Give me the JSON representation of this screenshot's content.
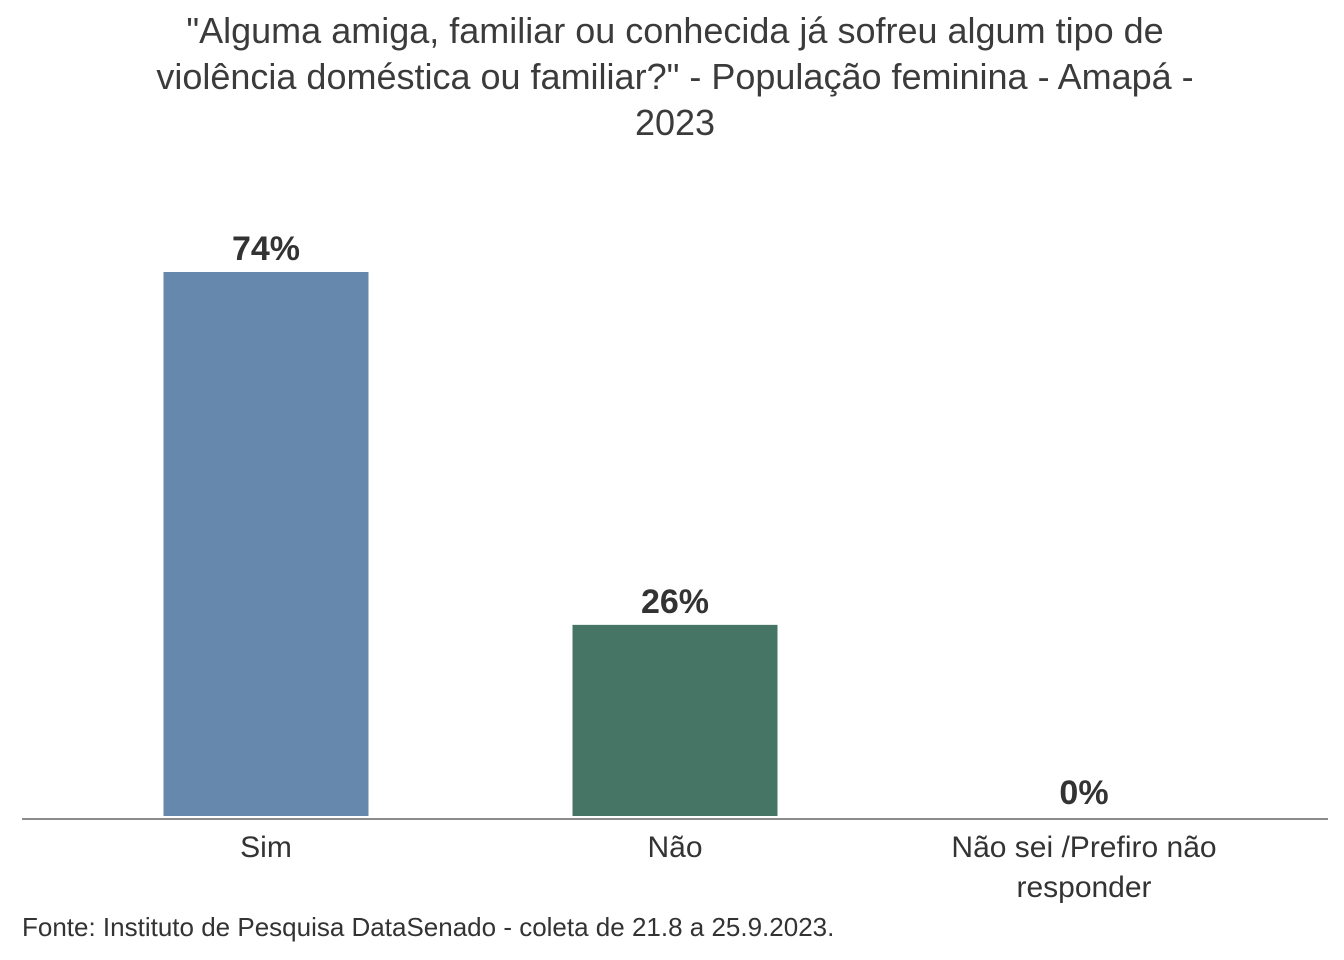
{
  "chart_data": {
    "type": "bar",
    "title": "\"Alguma amiga, familiar ou conhecida já sofreu algum tipo de violência doméstica ou familiar?\" - População feminina - Amapá - 2023",
    "categories": [
      "Sim",
      "Não",
      "Não sei /Prefiro não responder"
    ],
    "values": [
      74,
      26,
      0
    ],
    "data_labels": [
      "74%",
      "26%",
      "0%"
    ],
    "unit": "%",
    "colors": [
      "#6688ad",
      "#477565",
      "#6688ad"
    ],
    "xlabel": "",
    "ylabel": "",
    "ylim": [
      0,
      74
    ],
    "grid": false,
    "legend": "none"
  },
  "source": "Fonte: Instituto de Pesquisa DataSenado - coleta de 21.8 a 25.9.2023."
}
